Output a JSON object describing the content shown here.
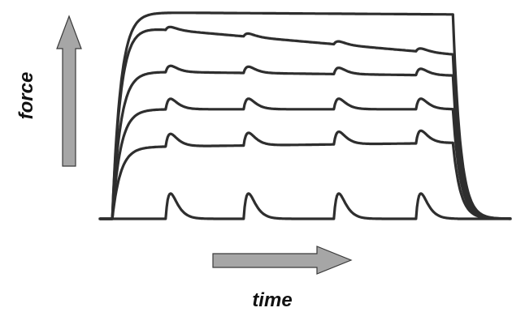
{
  "chart_data": {
    "type": "line",
    "title": "",
    "xlabel": "time",
    "ylabel": "force",
    "xlim": [
      0,
      100
    ],
    "ylim": [
      0,
      100
    ],
    "grid": false,
    "legend": "none",
    "line_color": "#2e2e2e",
    "arrow_color": "#a6a6a6",
    "stimulus_times": [
      16,
      35,
      57,
      77
    ],
    "series": [
      {
        "plateau_start": 0,
        "plateau_end": 0,
        "ripple": 12
      },
      {
        "plateau_start": 34,
        "plateau_end": 36,
        "ripple": 6
      },
      {
        "plateau_start": 52,
        "plateau_end": 52,
        "ripple": 5
      },
      {
        "plateau_start": 70,
        "plateau_end": 68,
        "ripple": 3
      },
      {
        "plateau_start": 92,
        "plateau_end": 78,
        "ripple": 1.5
      },
      {
        "plateau_start": 98,
        "plateau_end": 97,
        "ripple": 0
      }
    ]
  }
}
